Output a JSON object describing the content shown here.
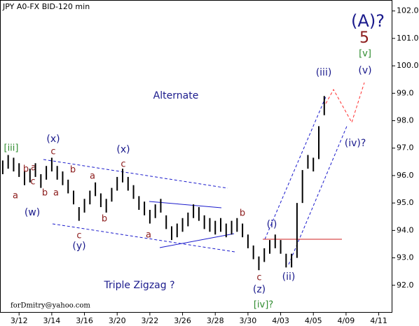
{
  "chart_data": {
    "type": "ohlc",
    "title": "JPY A0-FX BID-120 min",
    "x": [
      -6,
      -4,
      -2,
      0,
      2,
      4,
      6,
      8,
      10,
      12,
      14,
      16,
      18,
      20,
      22,
      24,
      26,
      28,
      30,
      32,
      34,
      36,
      38,
      40,
      42,
      44,
      46,
      48,
      50,
      52,
      54,
      56,
      58,
      60,
      62,
      64,
      66,
      68,
      70,
      72,
      74,
      76,
      78,
      80,
      82,
      84,
      86,
      88,
      90,
      92,
      94,
      96,
      98,
      100,
      102,
      104,
      106,
      108,
      110,
      112
    ],
    "high": [
      96.55,
      96.75,
      96.65,
      96.45,
      96.15,
      96.25,
      96.45,
      96.05,
      96.35,
      96.65,
      96.35,
      96.15,
      95.85,
      95.45,
      94.85,
      95.15,
      95.45,
      95.75,
      95.35,
      95.15,
      95.55,
      95.95,
      96.25,
      95.95,
      95.65,
      95.25,
      95.05,
      94.75,
      94.95,
      95.15,
      94.55,
      94.15,
      94.25,
      94.45,
      94.65,
      94.95,
      94.85,
      94.55,
      94.45,
      94.35,
      94.45,
      94.25,
      94.35,
      94.45,
      94.25,
      93.85,
      93.45,
      93.05,
      93.35,
      93.65,
      93.85,
      93.65,
      93.15,
      93.15,
      95.0,
      96.2,
      96.75,
      96.65,
      97.8,
      98.9
    ],
    "low": [
      96.05,
      96.25,
      96.15,
      95.95,
      95.65,
      95.75,
      95.95,
      95.55,
      95.85,
      96.15,
      95.85,
      95.65,
      95.35,
      94.95,
      94.35,
      94.65,
      94.95,
      95.25,
      94.85,
      94.65,
      95.05,
      95.45,
      95.75,
      95.45,
      95.15,
      94.75,
      94.55,
      94.25,
      94.45,
      94.65,
      94.05,
      93.65,
      93.75,
      93.95,
      94.15,
      94.45,
      94.35,
      94.05,
      93.95,
      93.85,
      93.95,
      93.75,
      93.85,
      93.95,
      93.75,
      93.35,
      92.95,
      92.55,
      92.85,
      93.15,
      93.35,
      93.15,
      92.65,
      92.65,
      93.0,
      95.0,
      96.25,
      96.15,
      96.6,
      98.2
    ],
    "color": "#000000",
    "xlim": [
      -7,
      137
    ],
    "xticks": [
      {
        "value": 0,
        "label": "3/12"
      },
      {
        "value": 12,
        "label": "3/14"
      },
      {
        "value": 24,
        "label": "3/16"
      },
      {
        "value": 36,
        "label": "3/20"
      },
      {
        "value": 48,
        "label": "3/22"
      },
      {
        "value": 60,
        "label": "3/26"
      },
      {
        "value": 72,
        "label": "3/28"
      },
      {
        "value": 84,
        "label": "3/30"
      },
      {
        "value": 96,
        "label": "4/03"
      },
      {
        "value": 108,
        "label": "4/05"
      },
      {
        "value": 120,
        "label": "4/09"
      },
      {
        "value": 132,
        "label": "4/11"
      }
    ],
    "ylim": [
      91.0,
      102.4
    ],
    "yticks": [
      {
        "value": 92,
        "label": "92.0"
      },
      {
        "value": 93,
        "label": "93.0"
      },
      {
        "value": 94,
        "label": "94.0"
      },
      {
        "value": 95,
        "label": "95.0"
      },
      {
        "value": 96,
        "label": "96.0"
      },
      {
        "value": 97,
        "label": "97.0"
      },
      {
        "value": 98,
        "label": "98.0"
      },
      {
        "value": 99,
        "label": "99.0"
      },
      {
        "value": 100,
        "label": "100.0"
      },
      {
        "value": 101,
        "label": "101.0"
      },
      {
        "value": 102,
        "label": "102.0"
      }
    ],
    "annotations": [
      "[iii]",
      "(x)",
      "c",
      "b",
      "a",
      "b",
      "a",
      "b",
      "c",
      "(w)",
      "a",
      "c",
      "(y)",
      "a",
      "b",
      "(x)",
      "c",
      "a",
      "b",
      "c",
      "(z)",
      "[iv]?",
      "(i)",
      "(ii)",
      "(iii)",
      "(iv)?",
      "(v)",
      "[v]",
      "5",
      "(A)?",
      "Alternate",
      "Triple Zigzag ?"
    ],
    "footer": "forDmitry@yahoo.com"
  }
}
